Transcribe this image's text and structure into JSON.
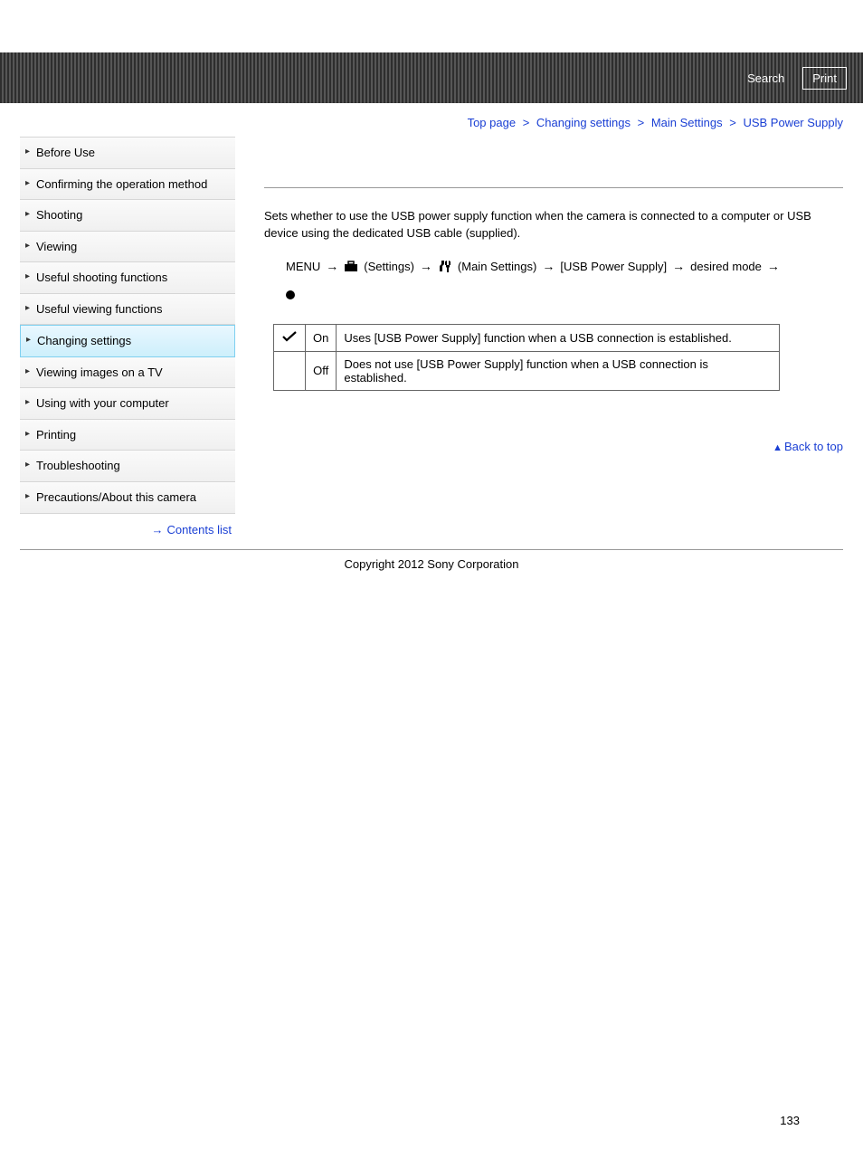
{
  "topbar": {
    "search_label": "Search",
    "print_label": "Print"
  },
  "breadcrumb": {
    "items": [
      "Top page",
      "Changing settings",
      "Main Settings",
      "USB Power Supply"
    ],
    "separator": ">"
  },
  "sidebar": {
    "items": [
      {
        "label": "Before Use",
        "active": false
      },
      {
        "label": "Confirming the operation method",
        "active": false
      },
      {
        "label": "Shooting",
        "active": false
      },
      {
        "label": "Viewing",
        "active": false
      },
      {
        "label": "Useful shooting functions",
        "active": false
      },
      {
        "label": "Useful viewing functions",
        "active": false
      },
      {
        "label": "Changing settings",
        "active": true
      },
      {
        "label": "Viewing images on a TV",
        "active": false
      },
      {
        "label": "Using with your computer",
        "active": false
      },
      {
        "label": "Printing",
        "active": false
      },
      {
        "label": "Troubleshooting",
        "active": false
      },
      {
        "label": "Precautions/About this camera",
        "active": false
      }
    ],
    "contents_list": "Contents list"
  },
  "main": {
    "description": "Sets whether to use the USB power supply function when the camera is connected to a computer or USB device using the dedicated USB cable (supplied).",
    "menu_path": {
      "steps": [
        "MENU",
        "(Settings)",
        "(Main Settings)",
        "[USB Power Supply]",
        "desired mode"
      ],
      "arrow": "→",
      "settings_icon": "toolbox",
      "main_settings_icon": "wrench"
    },
    "options_table": {
      "rows": [
        {
          "checked": true,
          "label": "On",
          "desc": "Uses [USB Power Supply] function when a USB connection is established."
        },
        {
          "checked": false,
          "label": "Off",
          "desc": "Does not use [USB Power Supply] function when a USB connection is established."
        }
      ]
    },
    "back_to_top": "Back to top"
  },
  "footer": {
    "copyright": "Copyright 2012 Sony Corporation",
    "page_number": "133"
  },
  "colors": {
    "link": "#1a3fd4",
    "border": "#666666",
    "sidebar_border": "#d6d6d6",
    "active_bg_top": "#e9f7ff",
    "active_bg_bottom": "#cdeffb",
    "active_border": "#7fd0f0"
  }
}
